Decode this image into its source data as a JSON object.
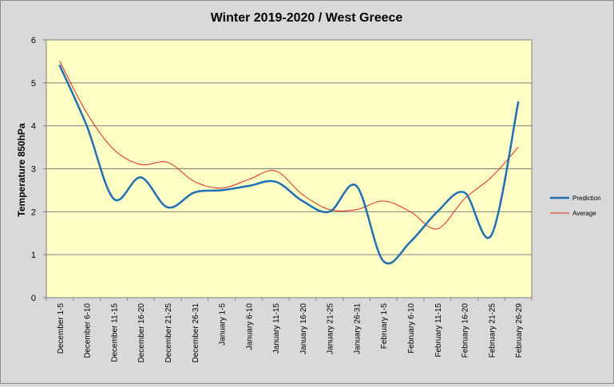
{
  "chart_data": {
    "type": "line",
    "title": "Winter 2019-2020 / West Greece",
    "xlabel": "",
    "ylabel": "Temperature 850hPa",
    "ylim": [
      0,
      6
    ],
    "yticks": [
      "0",
      "1",
      "2",
      "3",
      "4",
      "5",
      "6"
    ],
    "grid": true,
    "legend_position": "right",
    "categories": [
      "December 1-5",
      "December 6-10",
      "December 11-15",
      "December 16-20",
      "December 21-25",
      "December 26-31",
      "January 1-5",
      "January 6-10",
      "January 11-15",
      "January 16-20",
      "January 21-25",
      "January 26-31",
      "February 1-5",
      "February 6-10",
      "February 11-15",
      "February 16-20",
      "February 21-25",
      "February 26-29"
    ],
    "series": [
      {
        "name": "Prediction",
        "color": "#1f6fb5",
        "values": [
          5.4,
          4.0,
          2.3,
          2.8,
          2.1,
          2.45,
          2.5,
          2.6,
          2.7,
          2.25,
          2.0,
          2.6,
          0.85,
          1.3,
          2.0,
          2.45,
          1.45,
          4.55
        ]
      },
      {
        "name": "Average",
        "color": "#e3261f",
        "values": [
          5.5,
          4.3,
          3.45,
          3.1,
          3.15,
          2.7,
          2.55,
          2.75,
          2.95,
          2.4,
          2.05,
          2.05,
          2.25,
          2.0,
          1.6,
          2.3,
          2.8,
          3.5
        ]
      }
    ]
  }
}
